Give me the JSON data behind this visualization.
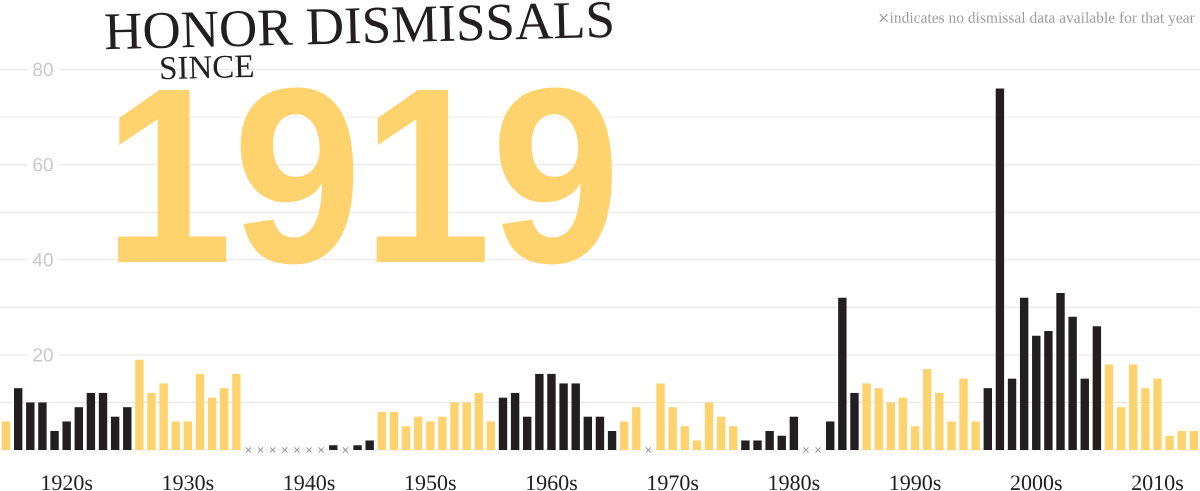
{
  "chart_data": {
    "type": "bar",
    "title": "HONOR DISMISSALS",
    "subtitle": "SINCE",
    "annotations": [
      "1919"
    ],
    "categories": [
      null,
      null,
      null,
      null,
      null,
      "1920s",
      null,
      null,
      null,
      null,
      null,
      null,
      null,
      null,
      null,
      "1930s",
      null,
      null,
      null,
      null,
      null,
      null,
      null,
      null,
      null,
      "1940s",
      null,
      null,
      null,
      null,
      null,
      null,
      null,
      null,
      null,
      "1950s",
      null,
      null,
      null,
      null,
      null,
      null,
      null,
      null,
      null,
      "1960s",
      null,
      null,
      null,
      null,
      null,
      null,
      null,
      null,
      null,
      "1970s",
      null,
      null,
      null,
      null,
      null,
      null,
      null,
      null,
      null,
      "1980s",
      null,
      null,
      null,
      null,
      null,
      null,
      null,
      null,
      null,
      "1990s",
      null,
      null,
      null,
      null,
      null,
      null,
      null,
      null,
      null,
      "2000s",
      null,
      null,
      null,
      null,
      null,
      null,
      null,
      null,
      null,
      "2010s",
      null,
      null,
      null
    ],
    "series": [
      {
        "values": [
          6,
          13,
          10,
          10,
          4,
          6,
          9,
          12,
          12,
          7,
          9,
          19,
          12,
          14,
          6,
          6,
          16,
          11,
          13,
          16,
          null,
          null,
          null,
          null,
          null,
          null,
          null,
          1,
          null,
          1,
          2,
          8,
          8,
          5,
          7,
          6,
          7,
          10,
          10,
          12,
          6,
          11,
          12,
          7,
          16,
          16,
          14,
          14,
          7,
          7,
          4,
          6,
          9,
          null,
          14,
          9,
          5,
          2,
          10,
          7,
          5,
          2,
          2,
          4,
          3,
          7,
          null,
          null,
          6,
          32,
          12,
          14,
          13,
          10,
          11,
          5,
          17,
          12,
          6,
          15,
          6,
          13,
          76,
          15,
          32,
          24,
          25,
          33,
          28,
          15,
          26,
          18,
          9,
          18,
          13,
          15,
          3,
          4,
          4
        ],
        "colors": [
          "#fed36e",
          "#231f20",
          "#231f20",
          "#231f20",
          "#231f20",
          "#231f20",
          "#231f20",
          "#231f20",
          "#231f20",
          "#231f20",
          "#231f20",
          "#fed36e",
          "#fed36e",
          "#fed36e",
          "#fed36e",
          "#fed36e",
          "#fed36e",
          "#fed36e",
          "#fed36e",
          "#fed36e",
          null,
          null,
          null,
          null,
          null,
          null,
          null,
          "#231f20",
          null,
          "#231f20",
          "#231f20",
          "#fed36e",
          "#fed36e",
          "#fed36e",
          "#fed36e",
          "#fed36e",
          "#fed36e",
          "#fed36e",
          "#fed36e",
          "#fed36e",
          "#fed36e",
          "#231f20",
          "#231f20",
          "#231f20",
          "#231f20",
          "#231f20",
          "#231f20",
          "#231f20",
          "#231f20",
          "#231f20",
          "#231f20",
          "#fed36e",
          "#fed36e",
          null,
          "#fed36e",
          "#fed36e",
          "#fed36e",
          "#fed36e",
          "#fed36e",
          "#fed36e",
          "#fed36e",
          "#231f20",
          "#231f20",
          "#231f20",
          "#231f20",
          "#231f20",
          null,
          null,
          "#231f20",
          "#231f20",
          "#231f20",
          "#fed36e",
          "#fed36e",
          "#fed36e",
          "#fed36e",
          "#fed36e",
          "#fed36e",
          "#fed36e",
          "#fed36e",
          "#fed36e",
          "#fed36e",
          "#231f20",
          "#231f20",
          "#231f20",
          "#231f20",
          "#231f20",
          "#231f20",
          "#231f20",
          "#231f20",
          "#231f20",
          "#231f20",
          "#fed36e",
          "#fed36e",
          "#fed36e",
          "#fed36e",
          "#fed36e",
          "#fed36e",
          "#fed36e",
          "#fed36e"
        ]
      },
      {
        "type": "scatter",
        "name": "indicates no dismissal data available for that year",
        "color": "#9b9b9b",
        "marker": "cross",
        "values": [
          null,
          null,
          null,
          null,
          null,
          null,
          null,
          null,
          null,
          null,
          null,
          null,
          null,
          null,
          null,
          null,
          null,
          null,
          null,
          null,
          0,
          0,
          0,
          0,
          0,
          0,
          0,
          null,
          0,
          null,
          null,
          null,
          null,
          null,
          null,
          null,
          null,
          null,
          null,
          null,
          null,
          null,
          null,
          null,
          null,
          null,
          null,
          null,
          null,
          null,
          null,
          null,
          null,
          0,
          null,
          null,
          null,
          null,
          null,
          null,
          null,
          null,
          null,
          null,
          null,
          null,
          0,
          0,
          null,
          null,
          null,
          null,
          null,
          null,
          null,
          null,
          null,
          null,
          null,
          null,
          null,
          null,
          null,
          null,
          null,
          null,
          null,
          null,
          null,
          null,
          null,
          null,
          null,
          null,
          null,
          null,
          null,
          null,
          null
        ]
      }
    ],
    "ylim": [
      0,
      80
    ],
    "yticks": [
      {
        "value": 0,
        "label": null
      },
      {
        "value": 10,
        "label": null
      },
      20,
      {
        "value": 30,
        "label": null
      },
      40,
      {
        "value": 50,
        "label": null
      },
      60,
      {
        "value": 70,
        "label": null
      },
      80
    ],
    "grid": "y",
    "legend": "top right"
  }
}
